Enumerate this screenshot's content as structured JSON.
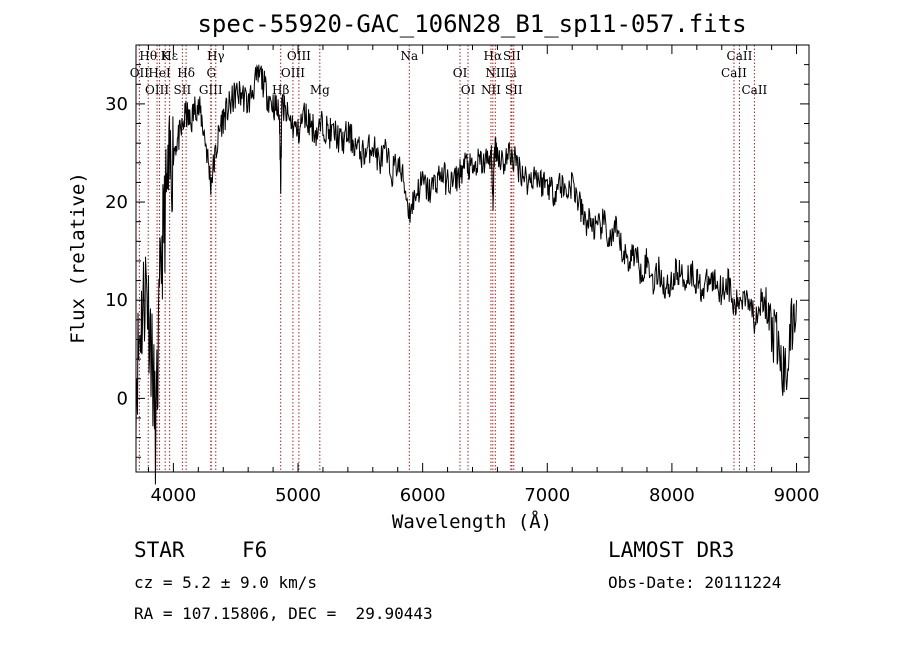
{
  "chart_data": {
    "type": "line",
    "title": "spec-55920-GAC_106N28_B1_sp11-057.fits",
    "xlabel": "Wavelength (Å)",
    "ylabel": "Flux (relative)",
    "xlim": [
      3700,
      9100
    ],
    "ylim": [
      -7.5,
      36
    ],
    "x_ticks": [
      4000,
      5000,
      6000,
      7000,
      8000,
      9000
    ],
    "y_ticks": [
      0,
      10,
      20,
      30
    ],
    "series": [
      {
        "name": "spectrum",
        "x": [
          3700,
          3740,
          3780,
          3820,
          3860,
          3900,
          3940,
          3980,
          4020,
          4060,
          4100,
          4140,
          4180,
          4220,
          4260,
          4300,
          4340,
          4380,
          4420,
          4460,
          4500,
          4550,
          4600,
          4650,
          4700,
          4750,
          4800,
          4850,
          4861,
          4870,
          4900,
          4950,
          5000,
          5050,
          5100,
          5150,
          5200,
          5250,
          5300,
          5350,
          5400,
          5450,
          5500,
          5550,
          5600,
          5650,
          5700,
          5750,
          5800,
          5850,
          5893,
          5950,
          6000,
          6050,
          6100,
          6150,
          6200,
          6250,
          6300,
          6350,
          6400,
          6450,
          6500,
          6550,
          6563,
          6580,
          6600,
          6650,
          6700,
          6750,
          6800,
          6850,
          6900,
          6950,
          7000,
          7050,
          7100,
          7150,
          7200,
          7250,
          7300,
          7350,
          7400,
          7450,
          7500,
          7550,
          7600,
          7650,
          7700,
          7750,
          7800,
          7850,
          7900,
          7950,
          8000,
          8050,
          8100,
          8150,
          8200,
          8250,
          8300,
          8350,
          8400,
          8450,
          8498,
          8542,
          8600,
          8662,
          8700,
          8750,
          8800,
          8850,
          8900,
          8950,
          9000
        ],
        "values": [
          2,
          8,
          12,
          6,
          -4,
          14,
          20,
          24,
          26,
          27,
          29,
          28,
          30,
          29,
          26,
          22,
          25,
          28,
          29,
          30,
          31,
          31,
          30,
          32,
          33,
          31,
          30,
          29,
          22,
          30,
          29,
          28,
          27,
          29,
          28,
          27,
          28,
          27,
          27,
          26,
          27,
          26,
          25,
          25,
          26,
          24,
          25,
          23,
          24,
          22,
          19,
          21,
          22,
          21,
          22,
          23,
          22,
          22,
          23,
          24,
          23,
          24,
          24,
          25,
          20,
          26,
          25,
          24,
          25,
          24,
          23,
          22,
          23,
          22,
          22,
          21,
          22,
          21,
          22,
          20,
          18,
          18,
          17,
          18,
          16,
          17,
          15,
          14,
          15,
          13,
          14,
          12,
          13,
          11,
          12,
          13,
          12,
          13,
          12,
          11,
          12,
          12,
          11,
          12,
          9,
          10,
          11,
          8,
          10,
          9,
          7,
          5,
          2,
          6,
          10
        ]
      }
    ],
    "spectral_lines": [
      {
        "label": "Hθ",
        "x": 3798
      },
      {
        "label": "OII",
        "x": 3727
      },
      {
        "label": "OIII",
        "x": 3869
      },
      {
        "label": "K",
        "x": 3934
      },
      {
        "label": "HeI",
        "x": 3889
      },
      {
        "label": "SII",
        "x": 4072
      },
      {
        "label": "Hε",
        "x": 3970
      },
      {
        "label": "Hδ",
        "x": 4102
      },
      {
        "label": "GIII",
        "x": 4300
      },
      {
        "label": "Hγ",
        "x": 4340
      },
      {
        "label": "G",
        "x": 4304
      },
      {
        "label": "Hβ",
        "x": 4861
      },
      {
        "label": "OIII",
        "x": 5007
      },
      {
        "label": "OIII",
        "x": 4959
      },
      {
        "label": "Mg",
        "x": 5175
      },
      {
        "label": "Na",
        "x": 5893
      },
      {
        "label": "OI",
        "x": 6300
      },
      {
        "label": "OI",
        "x": 6364
      },
      {
        "label": "Hα",
        "x": 6563
      },
      {
        "label": "NII",
        "x": 6583
      },
      {
        "label": "NII",
        "x": 6548
      },
      {
        "label": "SII",
        "x": 6716
      },
      {
        "label": "Li",
        "x": 6708
      },
      {
        "label": "SII",
        "x": 6731
      },
      {
        "label": "CaII",
        "x": 8542
      },
      {
        "label": "CaII",
        "x": 8498
      },
      {
        "label": "CaII",
        "x": 8662
      }
    ]
  },
  "info": {
    "object_class": "STAR",
    "subclass": "F6",
    "survey": "LAMOST DR3",
    "cz": "cz = 5.2 ± 9.0 km/s",
    "obs_date": "Obs-Date: 20111224",
    "coords": "RA = 107.15806, DEC =  29.90443"
  }
}
